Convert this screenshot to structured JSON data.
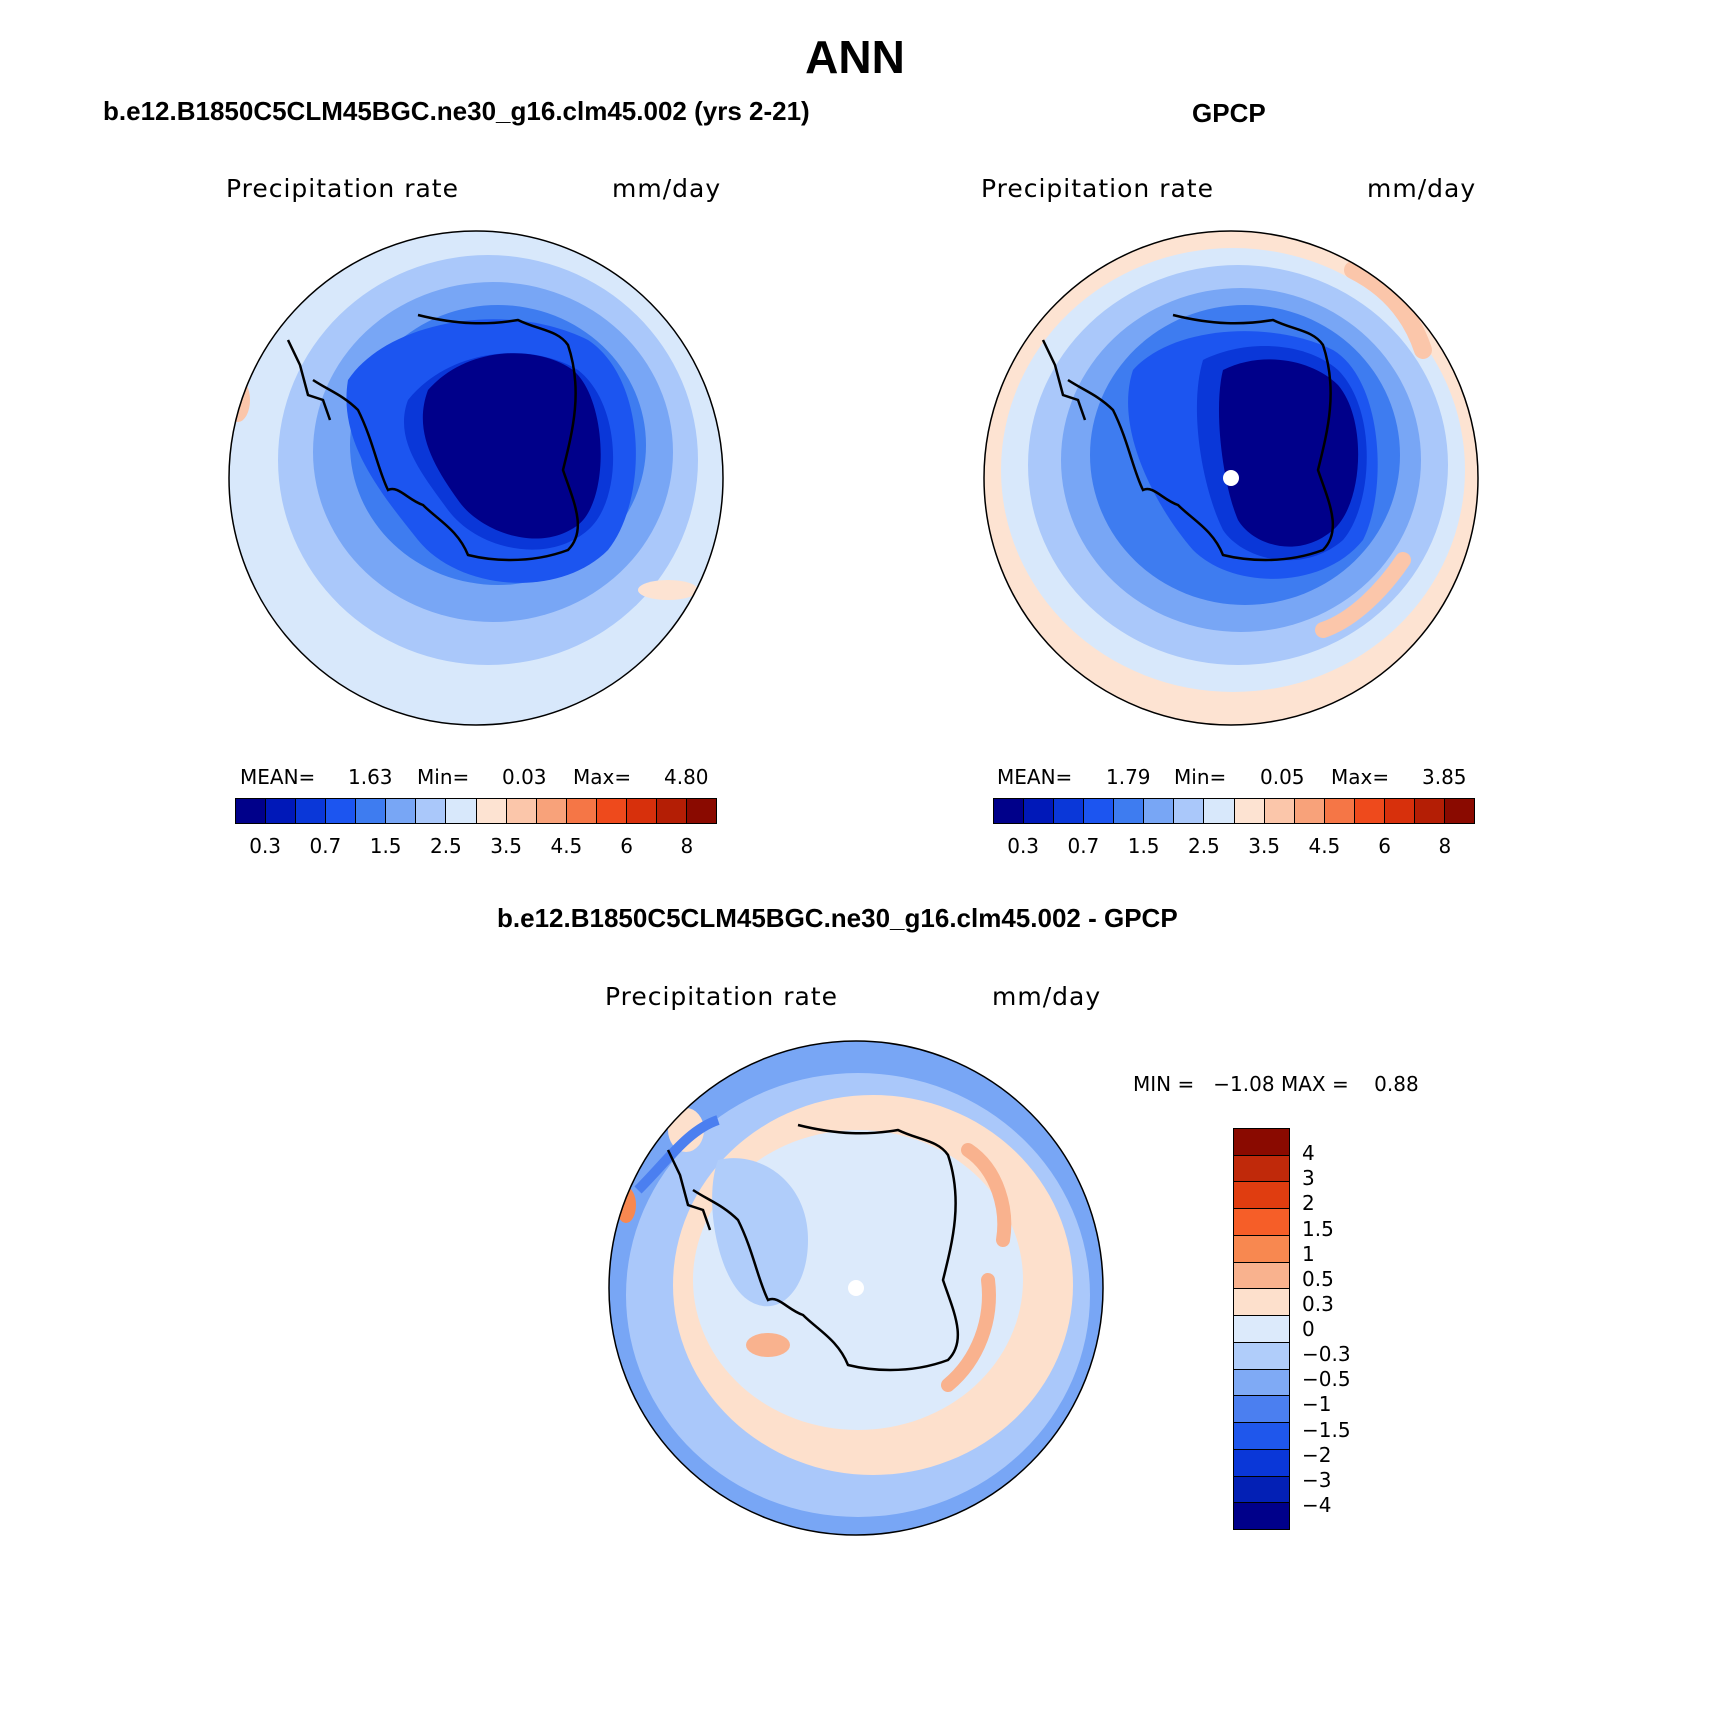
{
  "figure": {
    "title": "ANN"
  },
  "colors": {
    "abs_scale": [
      "#00008a",
      "#0018b8",
      "#0a37d8",
      "#1c55f0",
      "#3e7cf0",
      "#78a6f5",
      "#aac8fa",
      "#d8e8fb",
      "#fde3d2",
      "#fbc6aa",
      "#f8a27a",
      "#f57646",
      "#ee4a1c",
      "#d7300c",
      "#b41e05",
      "#8a0a00"
    ],
    "diff_scale": [
      "#8a0a00",
      "#c0290a",
      "#e03d10",
      "#f65e28",
      "#f88850",
      "#f9b28e",
      "#fde0cc",
      "#dceafb",
      "#b0cdfa",
      "#7faaf5",
      "#4b7ff0",
      "#1f57ec",
      "#0a37d8",
      "#0320b5",
      "#00008a"
    ]
  },
  "panels": {
    "model": {
      "title": "b.e12.B1850C5CLM45BGC.ne30_g16.clm45.002 (yrs 2-21)",
      "variable": "Precipitation rate",
      "units": "mm/day",
      "stats": {
        "mean_label": "MEAN=",
        "mean": "1.63",
        "min_label": "Min=",
        "min": "0.03",
        "max_label": "Max=",
        "max": "4.80"
      }
    },
    "obs": {
      "title": "GPCP",
      "variable": "Precipitation rate",
      "units": "mm/day",
      "stats": {
        "mean_label": "MEAN=",
        "mean": "1.79",
        "min_label": "Min=",
        "min": "0.05",
        "max_label": "Max=",
        "max": "3.85"
      }
    },
    "diff": {
      "title": "b.e12.B1850C5CLM45BGC.ne30_g16.clm45.002 - GPCP",
      "variable": "Precipitation rate",
      "units": "mm/day",
      "stats_text": "MIN =   −1.08 MAX =    0.88"
    }
  },
  "colorbars": {
    "abs_ticks": [
      "0.3",
      "0.7",
      "1.5",
      "2.5",
      "3.5",
      "4.5",
      "6",
      "8"
    ],
    "diff_ticks": [
      "4",
      "3",
      "2",
      "1.5",
      "1",
      "0.5",
      "0.3",
      "0",
      "−0.3",
      "−0.5",
      "−1",
      "−1.5",
      "−2",
      "−3",
      "−4"
    ]
  }
}
